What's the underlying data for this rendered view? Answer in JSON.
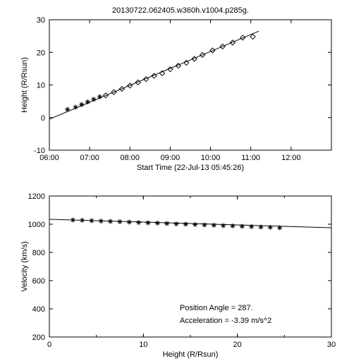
{
  "figure_title": "20130722.062405.w360h.v1004.p285g.",
  "top_chart": {
    "type": "scatter+line",
    "xlabel": "Start Time (22-Jul-13 05:45:26)",
    "ylabel": "Height (R/Rsun)",
    "xlim": [
      0,
      7
    ],
    "xtick_labels": [
      "06:00",
      "07:00",
      "08:00",
      "09:00",
      "10:00",
      "11:00",
      "12:00"
    ],
    "xtick_positions": [
      0,
      1,
      2,
      3,
      4,
      5,
      6
    ],
    "ylim": [
      -10,
      30
    ],
    "ytick_step": 10,
    "label_fontsize": 11,
    "background_color": "#ffffff",
    "fit_line": {
      "x0": 0,
      "y0": -0.5,
      "x1": 5.2,
      "y1": 26.5
    },
    "series": [
      {
        "marker": "asterisk",
        "points": [
          {
            "x": 0.45,
            "y": 2.5
          },
          {
            "x": 0.65,
            "y": 3.2
          },
          {
            "x": 0.8,
            "y": 4.0
          },
          {
            "x": 0.95,
            "y": 4.8
          },
          {
            "x": 1.1,
            "y": 5.6
          },
          {
            "x": 1.25,
            "y": 6.4
          }
        ]
      },
      {
        "marker": "diamond",
        "points": [
          {
            "x": 1.4,
            "y": 6.8
          },
          {
            "x": 1.6,
            "y": 7.8
          },
          {
            "x": 1.8,
            "y": 8.8
          },
          {
            "x": 2.0,
            "y": 9.8
          },
          {
            "x": 2.2,
            "y": 10.8
          },
          {
            "x": 2.4,
            "y": 11.8
          },
          {
            "x": 2.6,
            "y": 12.8
          },
          {
            "x": 2.8,
            "y": 13.6
          },
          {
            "x": 3.0,
            "y": 14.8
          },
          {
            "x": 3.2,
            "y": 15.9
          },
          {
            "x": 3.4,
            "y": 16.8
          },
          {
            "x": 3.6,
            "y": 18.0
          },
          {
            "x": 3.8,
            "y": 19.2
          },
          {
            "x": 4.05,
            "y": 20.6
          },
          {
            "x": 4.3,
            "y": 21.8
          },
          {
            "x": 4.55,
            "y": 23.0
          },
          {
            "x": 4.8,
            "y": 24.5
          },
          {
            "x": 5.05,
            "y": 24.8
          }
        ]
      }
    ]
  },
  "bottom_chart": {
    "type": "scatter+line",
    "xlabel": "Height (R/Rsun)",
    "ylabel": "Velocity (km/s)",
    "xlim": [
      0,
      30
    ],
    "xtick_step": 10,
    "xminor_step": 5,
    "ylim": [
      200,
      1200
    ],
    "ytick_step": 200,
    "label_fontsize": 11,
    "background_color": "#ffffff",
    "fit_line": {
      "x0": 0,
      "y0": 1035,
      "x1": 30,
      "y1": 975
    },
    "annotations": {
      "position_angle_label": "Position Angle =   287.",
      "acceleration_label": "Acceleration =   -3.39 m/s^2"
    },
    "series": [
      {
        "marker": "asterisk",
        "points": [
          {
            "x": 2.5,
            "y": 1030
          },
          {
            "x": 3.5,
            "y": 1028
          },
          {
            "x": 4.5,
            "y": 1025
          },
          {
            "x": 5.5,
            "y": 1022
          },
          {
            "x": 6.5,
            "y": 1020
          },
          {
            "x": 7.5,
            "y": 1018
          },
          {
            "x": 8.5,
            "y": 1015
          },
          {
            "x": 9.5,
            "y": 1012
          },
          {
            "x": 10.5,
            "y": 1010
          },
          {
            "x": 11.5,
            "y": 1008
          },
          {
            "x": 12.5,
            "y": 1005
          },
          {
            "x": 13.5,
            "y": 1002
          },
          {
            "x": 14.5,
            "y": 1000
          },
          {
            "x": 15.5,
            "y": 998
          },
          {
            "x": 16.5,
            "y": 995
          },
          {
            "x": 17.5,
            "y": 993
          },
          {
            "x": 18.5,
            "y": 990
          },
          {
            "x": 19.5,
            "y": 988
          },
          {
            "x": 20.5,
            "y": 985
          },
          {
            "x": 21.5,
            "y": 983
          },
          {
            "x": 22.5,
            "y": 980
          },
          {
            "x": 23.5,
            "y": 978
          },
          {
            "x": 24.5,
            "y": 975
          }
        ]
      }
    ]
  }
}
